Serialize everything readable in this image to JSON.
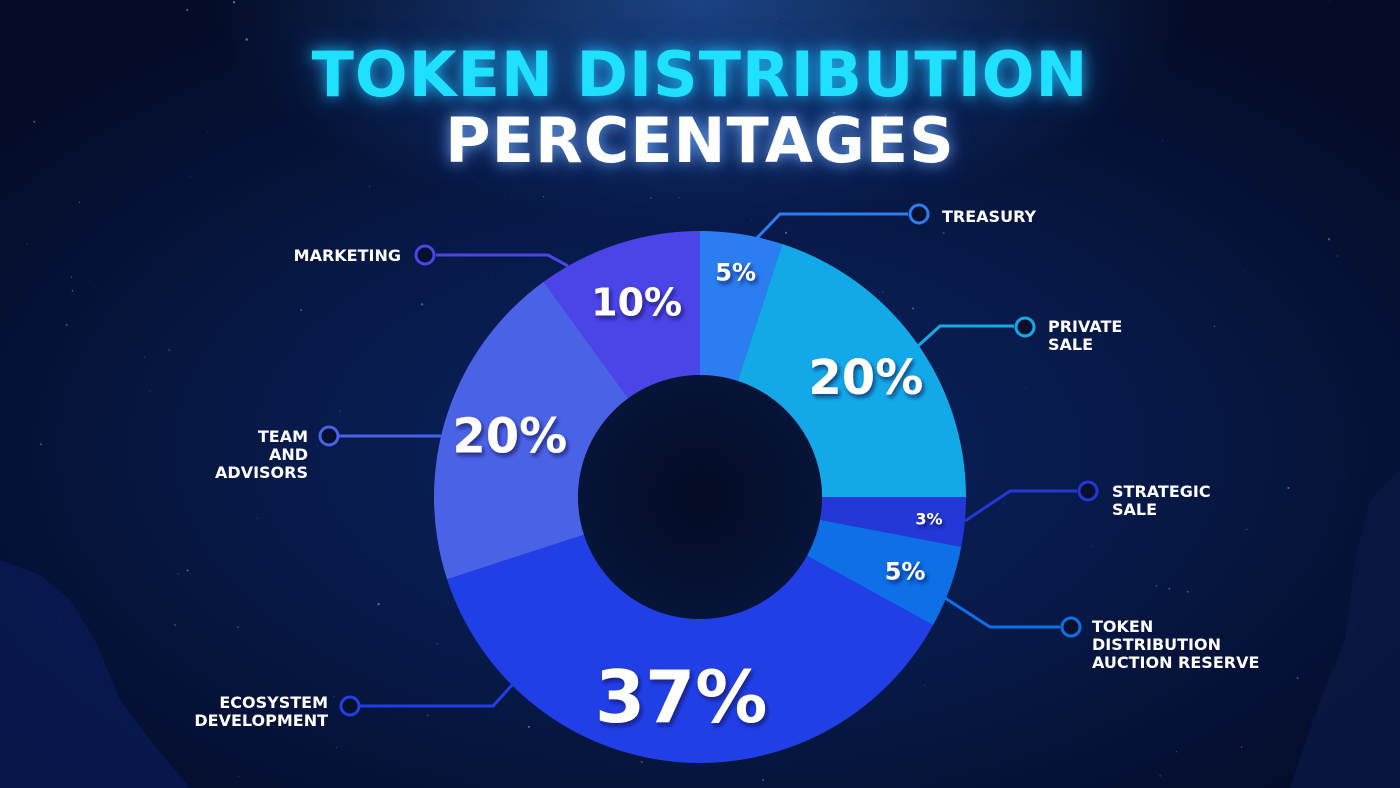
{
  "title": {
    "line1": "TOKEN DISTRIBUTION",
    "line2": "PERCENTAGES"
  },
  "colors": {
    "background": "#050d2a",
    "title_accent": "#1fe0ff",
    "title_main": "#ffffff"
  },
  "chart_data": {
    "type": "pie",
    "donut": true,
    "slices": [
      {
        "name": "TREASURY",
        "name_lines": [
          "TREASURY"
        ],
        "value": 5,
        "label": "5%",
        "color": "#2b7df0"
      },
      {
        "name": "PRIVATE SALE",
        "name_lines": [
          "PRIVATE",
          "SALE"
        ],
        "value": 20,
        "label": "20%",
        "color": "#13a9e8"
      },
      {
        "name": "STRATEGIC SALE",
        "name_lines": [
          "STRATEGIC",
          "SALE"
        ],
        "value": 3,
        "label": "3%",
        "color": "#2438d8"
      },
      {
        "name": "TOKEN DISTRIBUTION AUCTION RESERVE",
        "name_lines": [
          "TOKEN",
          "DISTRIBUTION",
          "AUCTION RESERVE"
        ],
        "value": 5,
        "label": "5%",
        "color": "#0e6fe6"
      },
      {
        "name": "ECOSYSTEM DEVELOPMENT",
        "name_lines": [
          "ECOSYSTEM",
          "DEVELOPMENT"
        ],
        "value": 37,
        "label": "37%",
        "color": "#213fe6"
      },
      {
        "name": "TEAM AND ADVISORS",
        "name_lines": [
          "TEAM",
          "AND",
          "ADVISORS"
        ],
        "value": 20,
        "label": "20%",
        "color": "#4a63e6"
      },
      {
        "name": "MARKETING",
        "name_lines": [
          "MARKETING"
        ],
        "value": 10,
        "label": "10%",
        "color": "#4b44e6"
      }
    ]
  }
}
